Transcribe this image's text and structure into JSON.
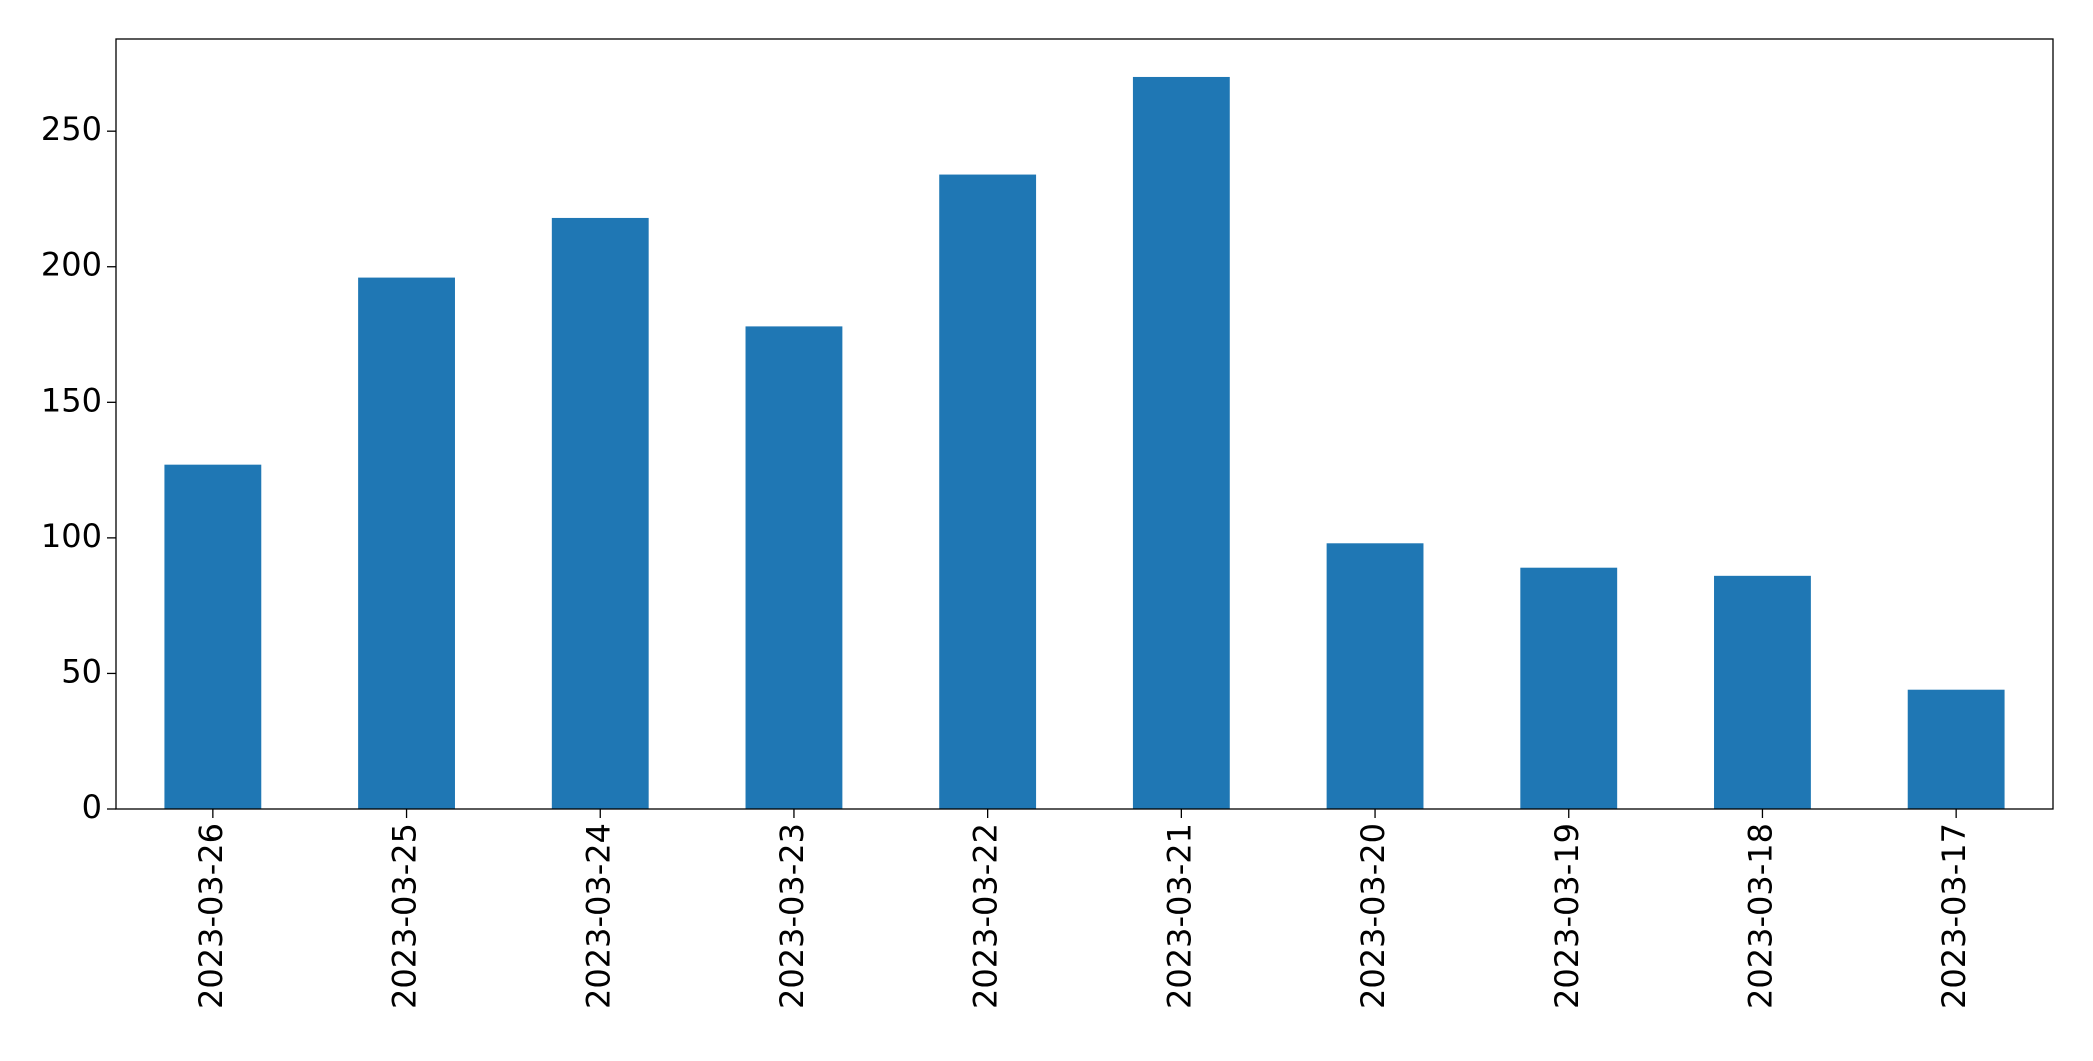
{
  "chart_data": {
    "type": "bar",
    "categories": [
      "2023-03-26",
      "2023-03-25",
      "2023-03-24",
      "2023-03-23",
      "2023-03-22",
      "2023-03-21",
      "2023-03-20",
      "2023-03-19",
      "2023-03-18",
      "2023-03-17"
    ],
    "values": [
      127,
      196,
      218,
      178,
      234,
      270,
      98,
      89,
      86,
      44
    ],
    "color": "#1f77b4",
    "ylim": [
      0,
      284
    ],
    "yticks": [
      0,
      50,
      100,
      150,
      200,
      250
    ],
    "grid": false
  }
}
